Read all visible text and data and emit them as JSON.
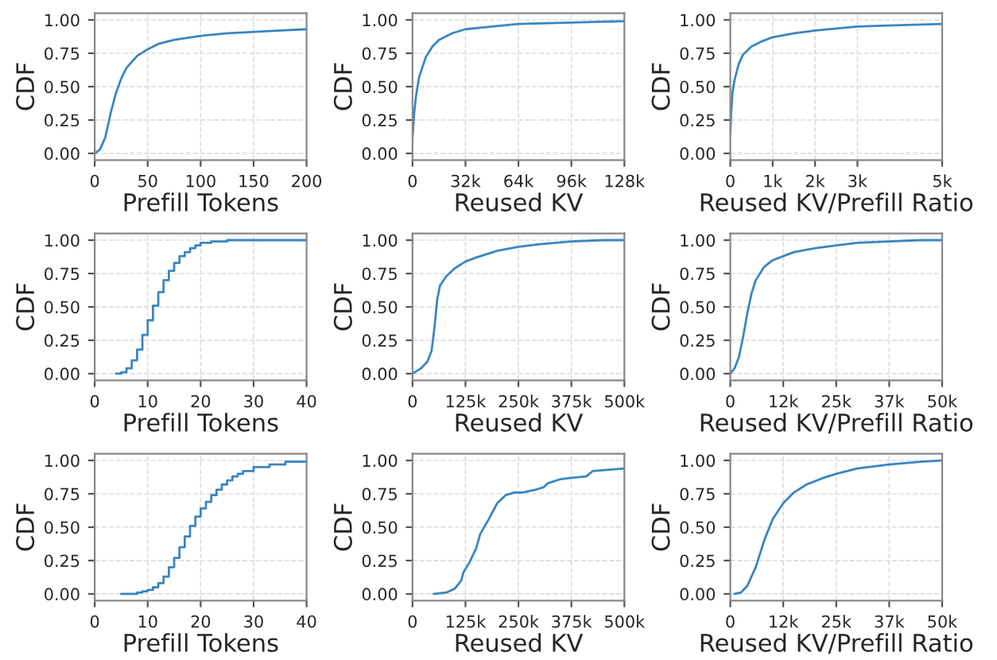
{
  "chart_data": [
    {
      "type": "line",
      "xlabel": "Prefill Tokens",
      "ylabel": "CDF",
      "grid": true,
      "color": "#3a86c0",
      "x": [
        0,
        5,
        10,
        15,
        20,
        25,
        30,
        40,
        50,
        60,
        75,
        100,
        125,
        150,
        175,
        200
      ],
      "values": [
        0.0,
        0.03,
        0.12,
        0.3,
        0.45,
        0.56,
        0.64,
        0.73,
        0.78,
        0.82,
        0.85,
        0.88,
        0.9,
        0.91,
        0.92,
        0.93
      ],
      "xlim": [
        0,
        200
      ],
      "xticks": [
        0,
        50,
        100,
        150,
        200
      ],
      "ylim": [
        -0.05,
        1.05
      ],
      "yticks": [
        {
          "value": 0,
          "label": "0.00"
        },
        {
          "value": 0.25,
          "label": "0.25"
        },
        {
          "value": 0.5,
          "label": "0.50"
        },
        {
          "value": 0.75,
          "label": "0.75"
        },
        {
          "value": 1,
          "label": "1.00"
        }
      ]
    },
    {
      "type": "line",
      "xlabel": "Reused KV",
      "ylabel": "CDF",
      "grid": true,
      "color": "#3a86c0",
      "x": [
        0,
        1000,
        2000,
        4000,
        8000,
        12000,
        16000,
        24000,
        32000,
        48000,
        64000,
        96000,
        128000
      ],
      "values": [
        0.12,
        0.3,
        0.42,
        0.57,
        0.72,
        0.8,
        0.85,
        0.9,
        0.93,
        0.95,
        0.97,
        0.98,
        0.99
      ],
      "xlim": [
        0,
        128000
      ],
      "xticks": [
        0,
        {
          "value": 32000,
          "label": "32k"
        },
        {
          "value": 64000,
          "label": "64k"
        },
        {
          "value": 96000,
          "label": "96k"
        },
        {
          "value": 128000,
          "label": "128k"
        }
      ],
      "ylim": [
        -0.05,
        1.05
      ],
      "yticks": [
        {
          "value": 0,
          "label": "0.00"
        },
        {
          "value": 0.25,
          "label": "0.25"
        },
        {
          "value": 0.5,
          "label": "0.50"
        },
        {
          "value": 0.75,
          "label": "0.75"
        },
        {
          "value": 1,
          "label": "1.00"
        }
      ]
    },
    {
      "type": "line",
      "xlabel": "Reused KV/Prefill Ratio",
      "ylabel": "CDF",
      "grid": true,
      "color": "#3a86c0",
      "x": [
        0,
        20,
        50,
        100,
        200,
        300,
        500,
        750,
        1000,
        1500,
        2000,
        3000,
        4000,
        5000
      ],
      "values": [
        0.15,
        0.3,
        0.45,
        0.55,
        0.67,
        0.74,
        0.8,
        0.84,
        0.87,
        0.9,
        0.92,
        0.95,
        0.96,
        0.97
      ],
      "xlim": [
        0,
        5000
      ],
      "xticks": [
        0,
        {
          "value": 1000,
          "label": "1k"
        },
        {
          "value": 2000,
          "label": "2k"
        },
        {
          "value": 3000,
          "label": "3k"
        },
        {
          "value": 5000,
          "label": "5k"
        }
      ],
      "ylim": [
        -0.05,
        1.05
      ],
      "yticks": [
        {
          "value": 0,
          "label": "0.00"
        },
        {
          "value": 0.25,
          "label": "0.25"
        },
        {
          "value": 0.5,
          "label": "0.50"
        },
        {
          "value": 0.75,
          "label": "0.75"
        },
        {
          "value": 1,
          "label": "1.00"
        }
      ]
    },
    {
      "type": "step",
      "xlabel": "Prefill Tokens",
      "ylabel": "CDF",
      "grid": true,
      "color": "#3a86c0",
      "x": [
        4,
        5,
        6,
        7,
        8,
        9,
        10,
        11,
        12,
        13,
        14,
        15,
        16,
        17,
        18,
        19,
        20,
        22,
        25,
        40
      ],
      "values": [
        0.0,
        0.01,
        0.04,
        0.1,
        0.18,
        0.29,
        0.4,
        0.51,
        0.61,
        0.7,
        0.77,
        0.83,
        0.88,
        0.91,
        0.94,
        0.96,
        0.98,
        0.99,
        1.0,
        1.0
      ],
      "xlim": [
        0,
        40
      ],
      "xticks": [
        0,
        10,
        20,
        30,
        40
      ],
      "ylim": [
        -0.05,
        1.05
      ],
      "yticks": [
        {
          "value": 0,
          "label": "0.00"
        },
        {
          "value": 0.25,
          "label": "0.25"
        },
        {
          "value": 0.5,
          "label": "0.50"
        },
        {
          "value": 0.75,
          "label": "0.75"
        },
        {
          "value": 1,
          "label": "1.00"
        }
      ]
    },
    {
      "type": "line",
      "xlabel": "Reused KV",
      "ylabel": "CDF",
      "grid": true,
      "color": "#3a86c0",
      "x": [
        0,
        20000,
        35000,
        45000,
        52000,
        58000,
        65000,
        80000,
        100000,
        125000,
        150000,
        200000,
        250000,
        300000,
        375000,
        450000,
        500000
      ],
      "values": [
        0.0,
        0.04,
        0.09,
        0.17,
        0.35,
        0.55,
        0.66,
        0.73,
        0.79,
        0.84,
        0.87,
        0.92,
        0.95,
        0.97,
        0.99,
        1.0,
        1.0
      ],
      "xlim": [
        0,
        500000
      ],
      "xticks": [
        0,
        {
          "value": 125000,
          "label": "125k"
        },
        {
          "value": 250000,
          "label": "250k"
        },
        {
          "value": 375000,
          "label": "375k"
        },
        {
          "value": 500000,
          "label": "500k"
        }
      ],
      "ylim": [
        -0.05,
        1.05
      ],
      "yticks": [
        {
          "value": 0,
          "label": "0.00"
        },
        {
          "value": 0.25,
          "label": "0.25"
        },
        {
          "value": 0.5,
          "label": "0.50"
        },
        {
          "value": 0.75,
          "label": "0.75"
        },
        {
          "value": 1,
          "label": "1.00"
        }
      ]
    },
    {
      "type": "line",
      "xlabel": "Reused KV/Prefill Ratio",
      "ylabel": "CDF",
      "grid": true,
      "color": "#3a86c0",
      "x": [
        0,
        1000,
        2000,
        3000,
        4000,
        5000,
        6000,
        8000,
        10000,
        12500,
        15000,
        20000,
        25000,
        30000,
        37500,
        45000,
        50000
      ],
      "values": [
        0.0,
        0.04,
        0.12,
        0.27,
        0.45,
        0.6,
        0.7,
        0.8,
        0.85,
        0.88,
        0.91,
        0.94,
        0.96,
        0.98,
        0.99,
        1.0,
        1.0
      ],
      "xlim": [
        0,
        50000
      ],
      "xticks": [
        0,
        {
          "value": 12500,
          "label": "12k"
        },
        {
          "value": 25000,
          "label": "25k"
        },
        {
          "value": 37500,
          "label": "37k"
        },
        {
          "value": 50000,
          "label": "50k"
        }
      ],
      "ylim": [
        -0.05,
        1.05
      ],
      "yticks": [
        {
          "value": 0,
          "label": "0.00"
        },
        {
          "value": 0.25,
          "label": "0.25"
        },
        {
          "value": 0.5,
          "label": "0.50"
        },
        {
          "value": 0.75,
          "label": "0.75"
        },
        {
          "value": 1,
          "label": "1.00"
        }
      ]
    },
    {
      "type": "step",
      "xlabel": "Prefill Tokens",
      "ylabel": "CDF",
      "grid": true,
      "color": "#3a86c0",
      "x": [
        5,
        8,
        9,
        10,
        11,
        12,
        13,
        14,
        15,
        16,
        17,
        18,
        19,
        20,
        21,
        22,
        23,
        24,
        25,
        26,
        27,
        28,
        30,
        33,
        36,
        40
      ],
      "values": [
        0.0,
        0.01,
        0.02,
        0.03,
        0.05,
        0.08,
        0.13,
        0.2,
        0.27,
        0.35,
        0.43,
        0.51,
        0.58,
        0.64,
        0.69,
        0.74,
        0.78,
        0.82,
        0.85,
        0.88,
        0.9,
        0.92,
        0.95,
        0.97,
        0.99,
        0.99
      ],
      "xlim": [
        0,
        40
      ],
      "xticks": [
        0,
        10,
        20,
        30,
        40
      ],
      "ylim": [
        -0.05,
        1.05
      ],
      "yticks": [
        {
          "value": 0,
          "label": "0.00"
        },
        {
          "value": 0.25,
          "label": "0.25"
        },
        {
          "value": 0.5,
          "label": "0.50"
        },
        {
          "value": 0.75,
          "label": "0.75"
        },
        {
          "value": 1,
          "label": "1.00"
        }
      ]
    },
    {
      "type": "line",
      "xlabel": "Reused KV",
      "ylabel": "CDF",
      "grid": true,
      "color": "#3a86c0",
      "x": [
        50000,
        80000,
        100000,
        115000,
        120000,
        135000,
        150000,
        160000,
        180000,
        200000,
        220000,
        240000,
        260000,
        290000,
        310000,
        320000,
        350000,
        375000,
        410000,
        425000,
        460000,
        500000
      ],
      "values": [
        0.0,
        0.01,
        0.04,
        0.1,
        0.16,
        0.24,
        0.34,
        0.45,
        0.56,
        0.68,
        0.74,
        0.76,
        0.76,
        0.78,
        0.8,
        0.83,
        0.86,
        0.87,
        0.88,
        0.92,
        0.93,
        0.94
      ],
      "xlim": [
        0,
        500000
      ],
      "xticks": [
        0,
        {
          "value": 125000,
          "label": "125k"
        },
        {
          "value": 250000,
          "label": "250k"
        },
        {
          "value": 375000,
          "label": "375k"
        },
        {
          "value": 500000,
          "label": "500k"
        }
      ],
      "ylim": [
        -0.05,
        1.05
      ],
      "yticks": [
        {
          "value": 0,
          "label": "0.00"
        },
        {
          "value": 0.25,
          "label": "0.25"
        },
        {
          "value": 0.5,
          "label": "0.50"
        },
        {
          "value": 0.75,
          "label": "0.75"
        },
        {
          "value": 1,
          "label": "1.00"
        }
      ]
    },
    {
      "type": "line",
      "xlabel": "Reused KV/Prefill Ratio",
      "ylabel": "CDF",
      "grid": true,
      "color": "#3a86c0",
      "x": [
        1000,
        2500,
        4000,
        6000,
        8000,
        10000,
        12500,
        15000,
        18000,
        22000,
        25000,
        30000,
        37500,
        45000,
        50000
      ],
      "values": [
        0.0,
        0.01,
        0.06,
        0.2,
        0.4,
        0.56,
        0.68,
        0.76,
        0.82,
        0.87,
        0.9,
        0.94,
        0.97,
        0.99,
        1.0
      ],
      "xlim": [
        0,
        50000
      ],
      "xticks": [
        0,
        {
          "value": 12500,
          "label": "12k"
        },
        {
          "value": 25000,
          "label": "25k"
        },
        {
          "value": 37500,
          "label": "37k"
        },
        {
          "value": 50000,
          "label": "50k"
        }
      ],
      "ylim": [
        -0.05,
        1.05
      ],
      "yticks": [
        {
          "value": 0,
          "label": "0.00"
        },
        {
          "value": 0.25,
          "label": "0.25"
        },
        {
          "value": 0.5,
          "label": "0.50"
        },
        {
          "value": 0.75,
          "label": "0.75"
        },
        {
          "value": 1,
          "label": "1.00"
        }
      ]
    }
  ]
}
